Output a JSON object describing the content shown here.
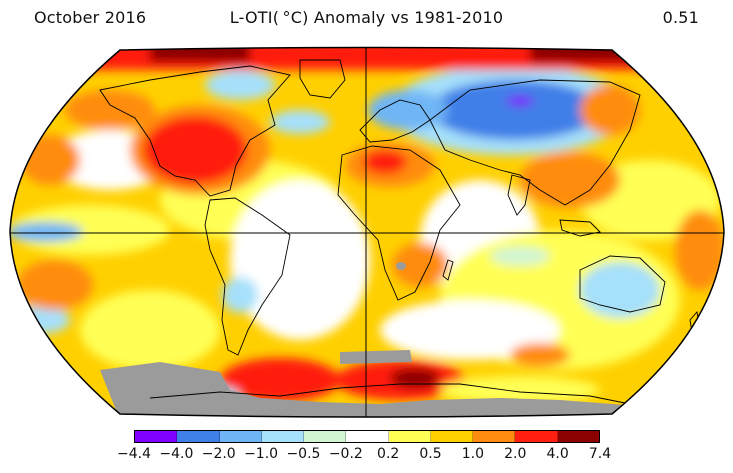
{
  "header": {
    "left": "October 2016",
    "center": "L-OTI( °C) Anomaly vs 1981-2010",
    "right": "0.51"
  },
  "legend": {
    "colors": [
      "#7f00ff",
      "#3f7fe8",
      "#6fb5f5",
      "#a6e0fb",
      "#d2f5d2",
      "#ffffff",
      "#ffff55",
      "#ffd000",
      "#ff8c10",
      "#ff1e10",
      "#8b0000"
    ],
    "ticks": [
      "−4.4",
      "−4.0",
      "−2.0",
      "−1.0",
      "−0.5",
      "−0.2",
      "0.2",
      "0.5",
      "1.0",
      "2.0",
      "4.0",
      "7.4"
    ]
  },
  "map": {
    "projection": "Robinson",
    "missing_data_color": "#9b9b9b"
  }
}
